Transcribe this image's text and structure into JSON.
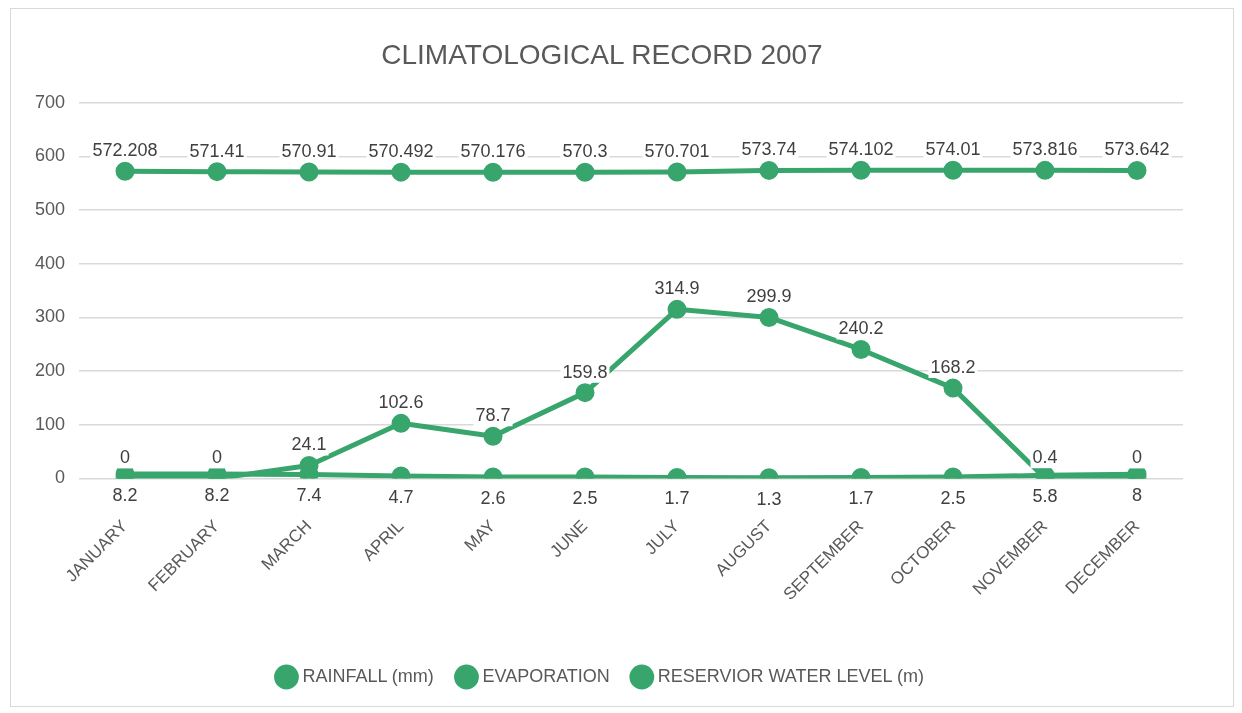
{
  "chart_data": {
    "type": "line",
    "title": "CLIMATOLOGICAL RECORD 2007",
    "categories": [
      "JANUARY",
      "FEBRUARY",
      "MARCH",
      "APRIL",
      "MAY",
      "JUNE",
      "JULY",
      "AUGUST",
      "SEPTEMBER",
      "OCTOBER",
      "NOVEMBER",
      "DECEMBER"
    ],
    "series": [
      {
        "name": "RAINFALL (mm)",
        "color": "#38a56d",
        "values": [
          0,
          0,
          24.1,
          102.6,
          78.7,
          159.8,
          314.9,
          299.9,
          240.2,
          168.2,
          0.4,
          0
        ]
      },
      {
        "name": "EVAPORATION",
        "color": "#38a56d",
        "values": [
          8.2,
          8.2,
          7.4,
          4.7,
          2.6,
          2.5,
          1.7,
          1.3,
          1.7,
          2.5,
          5.8,
          8
        ]
      },
      {
        "name": "RESERVIOR WATER LEVEL (m)",
        "color": "#38a56d",
        "values": [
          572.208,
          571.41,
          570.91,
          570.492,
          570.176,
          570.3,
          570.701,
          573.74,
          574.102,
          574.01,
          573.816,
          573.642
        ]
      }
    ],
    "ylim": [
      0,
      700
    ],
    "yticks": [
      0,
      100,
      200,
      300,
      400,
      500,
      600,
      700
    ],
    "grid": "y",
    "legend": "bottom",
    "marker": "circle",
    "line_style": "solid",
    "data_labels": true
  }
}
